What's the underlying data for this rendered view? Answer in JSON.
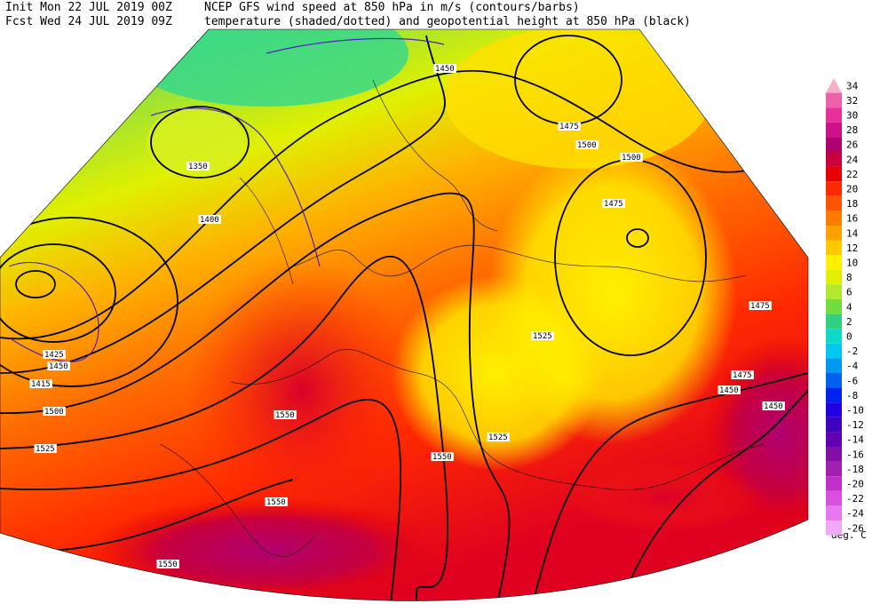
{
  "header": {
    "line1_left": "Init  Mon 22 JUL 2019 00Z",
    "line1_right": "NCEP GFS wind speed at 850 hPa in m/s (contours/barbs)",
    "line2_left": "Fcst Wed 24 JUL 2019 09Z",
    "line2_right": "temperature (shaded/dotted) and geopotential height at 850 hPa (black)"
  },
  "colorbar": {
    "levels": [
      34,
      32,
      30,
      28,
      26,
      24,
      22,
      20,
      18,
      16,
      14,
      12,
      10,
      8,
      6,
      4,
      2,
      0,
      -2,
      -4,
      -6,
      -8,
      -10,
      -12,
      -14,
      -16,
      -18,
      -20,
      -22,
      -24,
      -26
    ],
    "colors": [
      "#f4b0c4",
      "#f060a8",
      "#e8309a",
      "#d0108a",
      "#b00070",
      "#c8003c",
      "#e80000",
      "#ff2a00",
      "#ff5400",
      "#ff7c00",
      "#ffa200",
      "#ffca00",
      "#fff000",
      "#e2f000",
      "#b2e830",
      "#72dc40",
      "#30d080",
      "#10d8c8",
      "#00c8f0",
      "#0098f0",
      "#0060f0",
      "#0020f0",
      "#2000e0",
      "#4000c0",
      "#6000b0",
      "#8010a8",
      "#a020b0",
      "#c030c8",
      "#d850e0",
      "#e878f0",
      "#f0a8f8"
    ],
    "unit": "deg. C"
  },
  "map": {
    "contour_labels": [
      "1350",
      "1400",
      "1450",
      "1425",
      "1450",
      "1415",
      "1500",
      "1525",
      "1550",
      "1550",
      "1550",
      "1550",
      "1525",
      "1525",
      "1475",
      "1500",
      "1500",
      "1475",
      "1475",
      "1475",
      "1450",
      "1450"
    ]
  }
}
